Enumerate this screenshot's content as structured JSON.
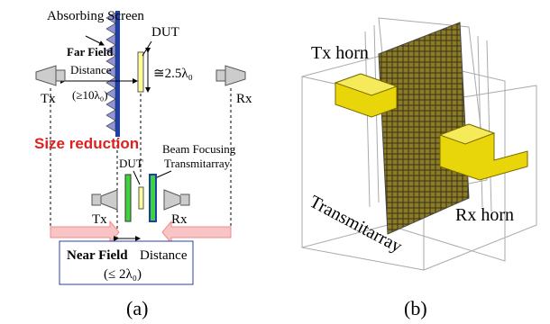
{
  "panel_a": {
    "absorbing_screen": "Absorbing Screen",
    "dut_far": "DUT",
    "far_field": "Far Field",
    "far_distance": "Distance",
    "far_condition": "(≥10λ₀)",
    "dut_size": "≅2.5λ₀",
    "tx_far": "Tx",
    "rx_far": "Rx",
    "size_reduction": "Size reduction",
    "beam_focusing": "Beam Focusing",
    "transmitarray": "Transmitarray",
    "dut_near": "DUT",
    "tx_near": "Tx",
    "rx_near": "Rx",
    "near_field": "Near Field",
    "near_distance": "Distance",
    "near_condition": "(≤ 2λ₀)",
    "caption": "(a)"
  },
  "panel_b": {
    "tx_horn": "Tx horn",
    "rx_horn": "Rx horn",
    "transmitarray": "Transmitarray",
    "caption": "(b)"
  }
}
